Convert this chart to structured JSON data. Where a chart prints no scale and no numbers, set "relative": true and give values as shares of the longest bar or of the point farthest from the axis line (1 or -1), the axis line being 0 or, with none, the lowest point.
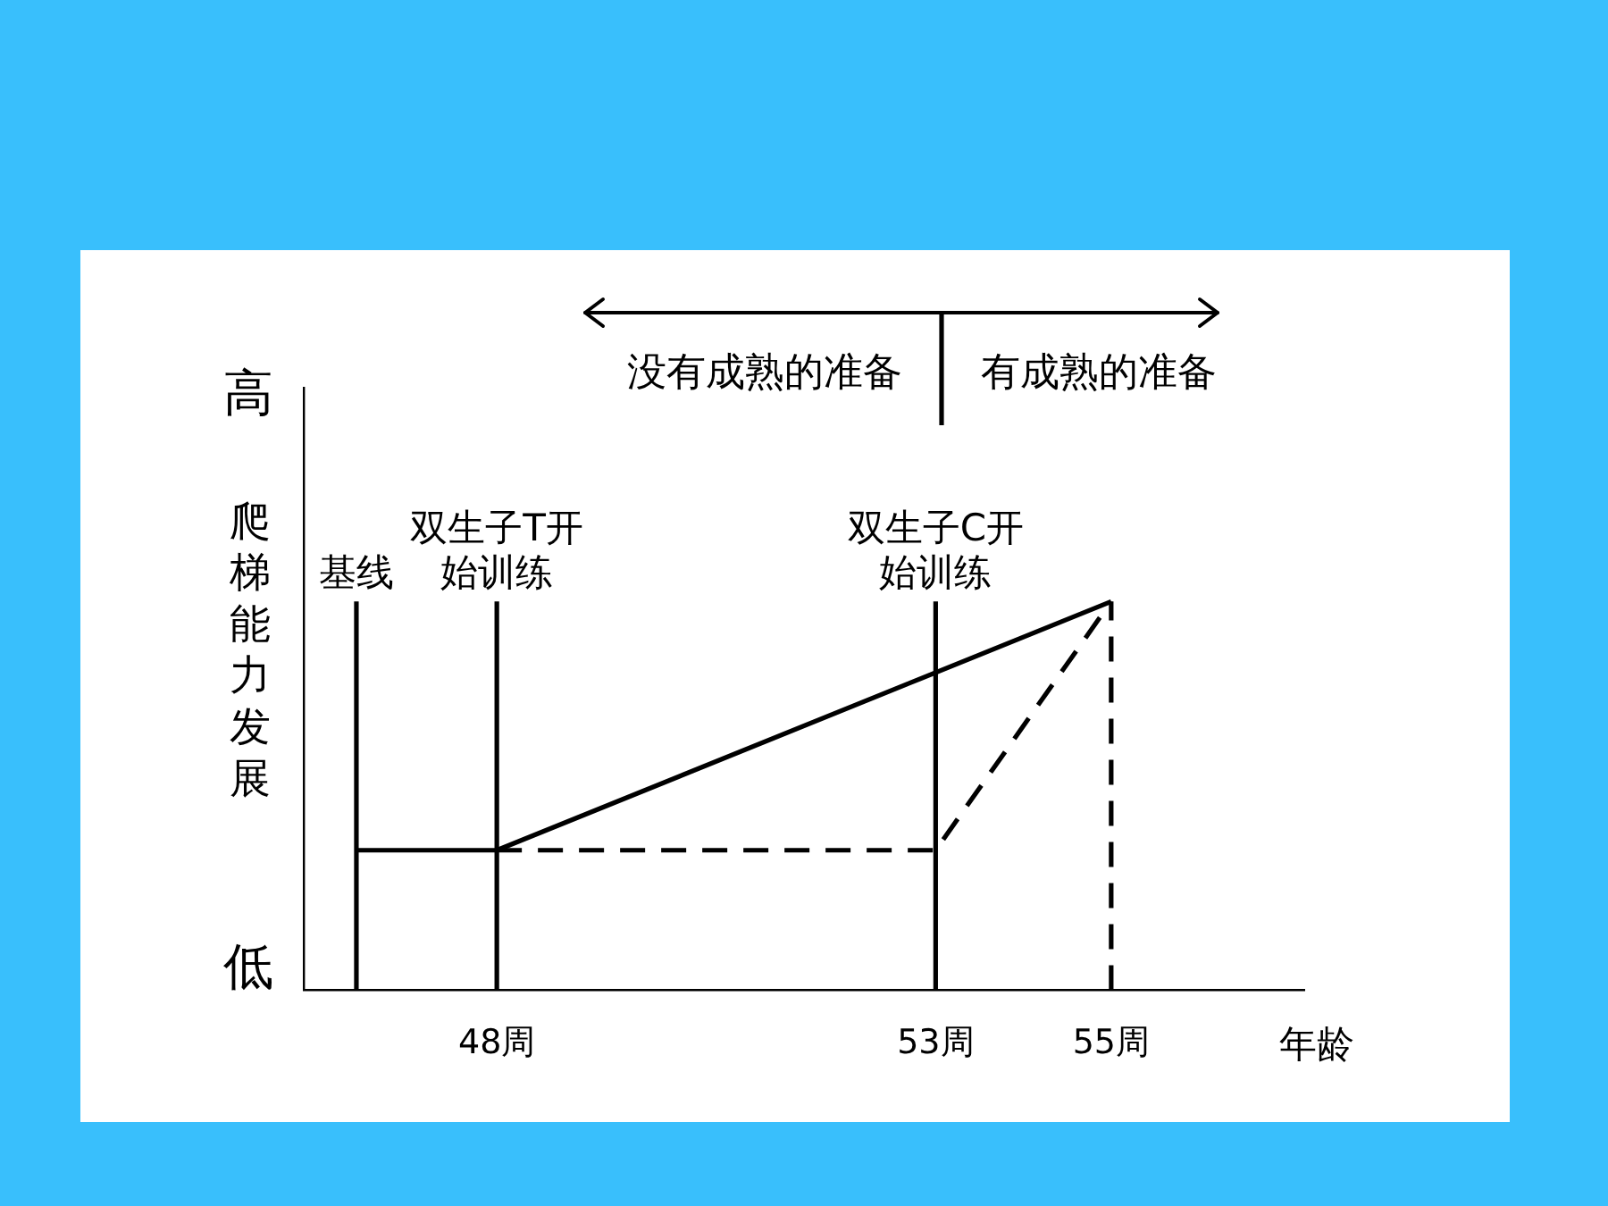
{
  "chart_data": {
    "type": "line",
    "relative": true,
    "xlabel": "年龄",
    "ylabel": "爬梯能力发展",
    "xlim": [
      45.8,
      57.2
    ],
    "xticks": [
      {
        "value": 48,
        "label": "48周"
      },
      {
        "value": 53,
        "label": "53周"
      },
      {
        "value": 55,
        "label": "55周"
      }
    ],
    "series": [
      {
        "color": "#000000",
        "line_style": "solid",
        "x": [
          46.4,
          48,
          55
        ],
        "values": [
          0.36,
          0.36,
          1
        ]
      },
      {
        "color": "#000000",
        "line_style": "dashed",
        "x": [
          48,
          53,
          55
        ],
        "values": [
          0.36,
          0.36,
          1
        ]
      }
    ],
    "ref_lines": [
      {
        "axis": "x",
        "value": 46.4,
        "label": "基线"
      },
      {
        "axis": "x",
        "value": 48,
        "label": "双生子T开始训练"
      },
      {
        "axis": "x",
        "value": 53,
        "label": "双生子C开始训练"
      },
      {
        "axis": "x",
        "value": 55,
        "line_style": "dashed"
      }
    ],
    "annotations": [
      "高",
      "低",
      "没有成熟的准备",
      "有成熟的准备"
    ]
  }
}
